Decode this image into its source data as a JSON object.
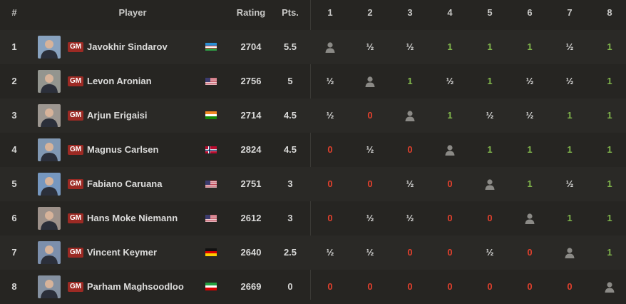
{
  "table": {
    "header": [
      "#",
      "Player",
      "Rating",
      "Pts.",
      "1",
      "2",
      "3",
      "4",
      "5",
      "6",
      "7",
      "8"
    ],
    "rows": [
      {
        "rank": 1,
        "title": "GM",
        "name": "Javokhir Sindarov",
        "rating": 2704,
        "points": 5.5,
        "results": [
          null,
          "½",
          "½",
          "1",
          "1",
          "1",
          "½",
          "1"
        ]
      },
      {
        "rank": 2,
        "title": "GM",
        "name": "Levon Aronian",
        "rating": 2756,
        "points": 5,
        "results": [
          "½",
          null,
          "1",
          "½",
          "1",
          "½",
          "½",
          "1"
        ]
      },
      {
        "rank": 3,
        "title": "GM",
        "name": "Arjun Erigaisi",
        "rating": 2714,
        "points": 4.5,
        "results": [
          "½",
          "0",
          null,
          "1",
          "½",
          "½",
          "1",
          "1"
        ]
      },
      {
        "rank": 4,
        "title": "GM",
        "name": "Magnus Carlsen",
        "rating": 2824,
        "points": 4.5,
        "results": [
          "0",
          "½",
          "0",
          null,
          "1",
          "1",
          "1",
          "1"
        ]
      },
      {
        "rank": 5,
        "title": "GM",
        "name": "Fabiano Caruana",
        "rating": 2751,
        "points": 3,
        "results": [
          "0",
          "0",
          "½",
          "0",
          null,
          "1",
          "½",
          "1"
        ]
      },
      {
        "rank": 6,
        "title": "GM",
        "name": "Hans Moke Niemann",
        "rating": 2612,
        "points": 3,
        "results": [
          "0",
          "½",
          "½",
          "0",
          "0",
          null,
          "1",
          "1"
        ]
      },
      {
        "rank": 7,
        "title": "GM",
        "name": "Vincent Keymer",
        "rating": 2640,
        "points": 2.5,
        "results": [
          "½",
          "½",
          "0",
          "0",
          "½",
          "0",
          null,
          "1"
        ]
      },
      {
        "rank": 8,
        "title": "GM",
        "name": "Parham Maghsoodloo",
        "rating": 2669,
        "points": 0,
        "results": [
          "0",
          "0",
          "0",
          "0",
          "0",
          "0",
          "0",
          null
        ]
      }
    ]
  }
}
